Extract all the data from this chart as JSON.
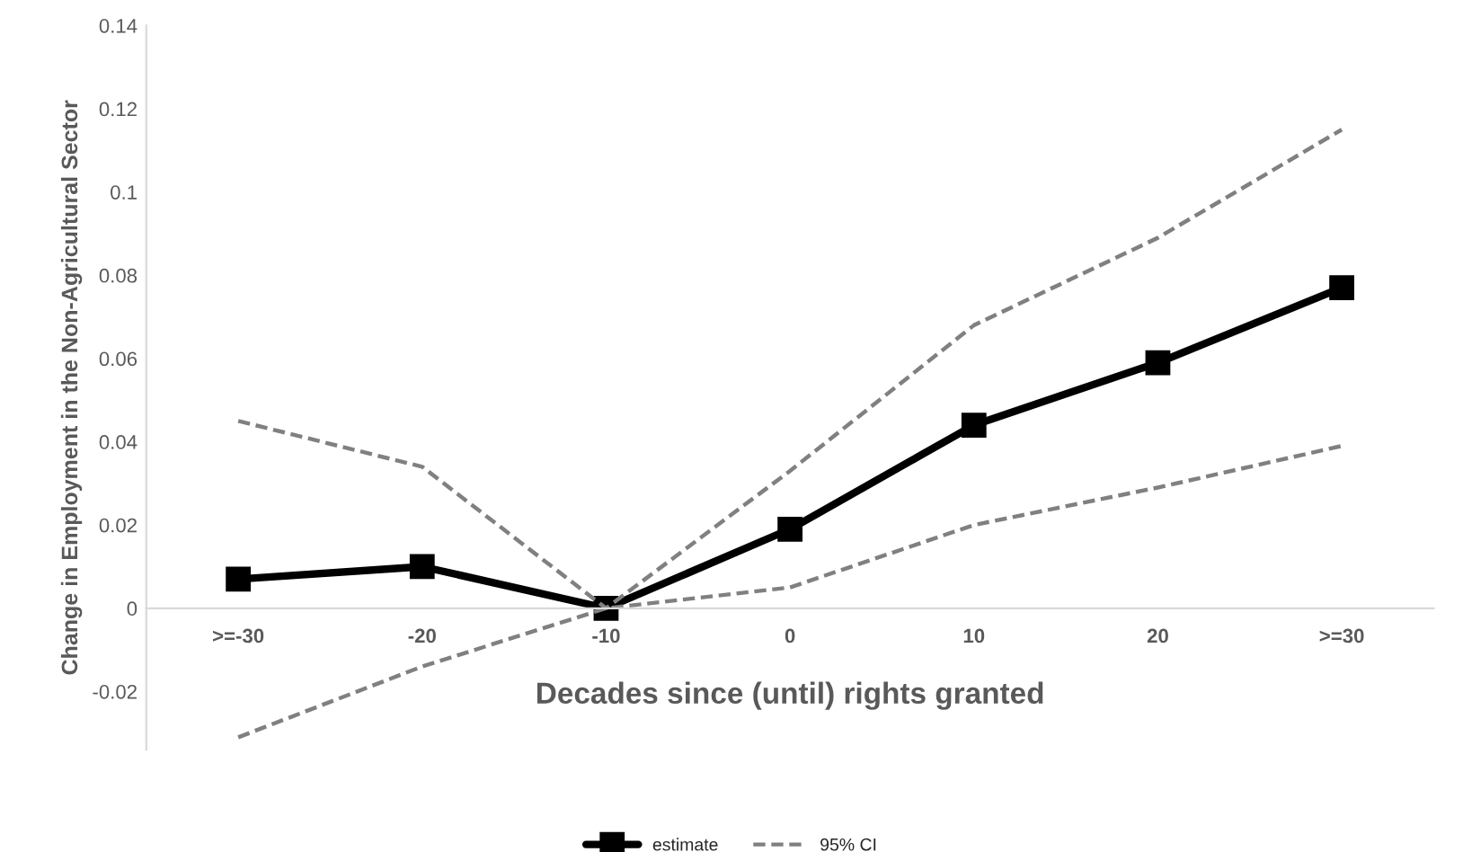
{
  "chart_data": {
    "type": "line",
    "xlabel": "Decades since (until) rights granted",
    "ylabel": "Change in Employment in the Non-Agricultural Sector",
    "categories": [
      ">=-30",
      "-20",
      "-10",
      "0",
      "10",
      "20",
      ">=30"
    ],
    "series": [
      {
        "name": "estimate",
        "color": "#000000",
        "marker": "square",
        "line_style": "solid",
        "values": [
          0.007,
          0.01,
          0,
          0.019,
          0.044,
          0.059,
          0.077
        ]
      },
      {
        "name": "95% CI",
        "color": "#808080",
        "marker": "none",
        "line_style": "dashed",
        "values": [
          0.045,
          0.034,
          0,
          0.033,
          0.068,
          0.089,
          0.115
        ]
      },
      {
        "color": "#808080",
        "marker": "none",
        "line_style": "dashed",
        "values": [
          -0.031,
          -0.014,
          0,
          0.005,
          0.02,
          0.029,
          0.039
        ]
      }
    ],
    "ylim": [
      -0.034,
      0.14
    ],
    "yticks": [
      -0.02,
      0,
      0.02,
      0.04,
      0.06,
      0.08,
      0.1,
      0.12,
      0.14
    ],
    "grid": false,
    "legend": "bottom"
  }
}
